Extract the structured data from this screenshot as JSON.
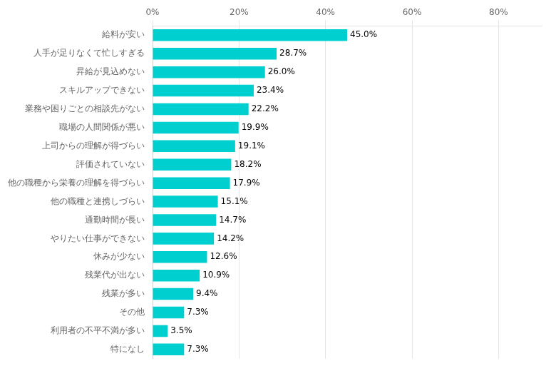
{
  "chart_data": {
    "type": "bar",
    "orientation": "horizontal",
    "categories": [
      "給料が安い",
      "人手が足りなくて忙しすぎる",
      "昇給が見込めない",
      "スキルアップできない",
      "業務や困りごとの相談先がない",
      "職場の人間関係が悪い",
      "上司からの理解が得づらい",
      "評価されていない",
      "他の職種から栄養の理解を得づらい",
      "他の職種と連携しづらい",
      "通勤時間が長い",
      "やりたい仕事ができない",
      "休みが少ない",
      "残業代が出ない",
      "残業が多い",
      "その他",
      "利用者の不平不満が多い",
      "特になし"
    ],
    "values": [
      45.0,
      28.7,
      26.0,
      23.4,
      22.2,
      19.9,
      19.1,
      18.2,
      17.9,
      15.1,
      14.7,
      14.2,
      12.6,
      10.9,
      9.4,
      7.3,
      3.5,
      7.3
    ],
    "value_labels": [
      "45.0%",
      "28.7%",
      "26.0%",
      "23.4%",
      "22.2%",
      "19.9%",
      "19.1%",
      "18.2%",
      "17.9%",
      "15.1%",
      "14.7%",
      "14.2%",
      "12.6%",
      "10.9%",
      "9.4%",
      "7.3%",
      "3.5%",
      "7.3%"
    ],
    "color": "#00CFCF",
    "xlim": [
      0,
      90
    ],
    "xticks": [
      {
        "value": 0,
        "label": "0%"
      },
      {
        "value": 20,
        "label": "20%"
      },
      {
        "value": 40,
        "label": "40%"
      },
      {
        "value": 60,
        "label": "60%"
      },
      {
        "value": 80,
        "label": "80%"
      }
    ],
    "grid": true,
    "data_labels": true
  }
}
